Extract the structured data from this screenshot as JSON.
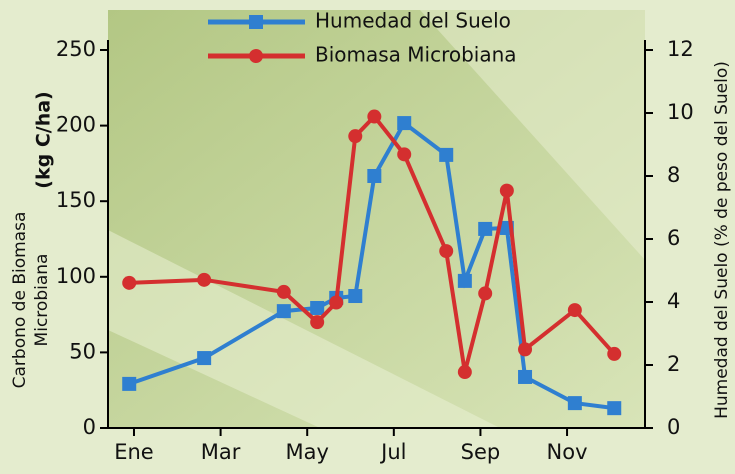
{
  "chart_data": {
    "type": "line",
    "ylabel_lines": [
      "Carbono de Biomasa",
      "Microbiana"
    ],
    "ylabel_unit": "(kg C/ha)",
    "y2label": "Humedad del Suelo (% de peso del Suelo)",
    "x": [
      0.89,
      2.62,
      4.46,
      5.23,
      5.67,
      6.11,
      6.55,
      7.24,
      8.21,
      8.64,
      9.11,
      9.61,
      10.03,
      11.18,
      12.09
    ],
    "xlim": [
      0.4,
      12.8
    ],
    "xticks": [
      {
        "value": 1,
        "label": "Ene"
      },
      {
        "value": 3,
        "label": "Mar"
      },
      {
        "value": 5,
        "label": "May"
      },
      {
        "value": 7,
        "label": "Jul"
      },
      {
        "value": 9,
        "label": "Sep"
      },
      {
        "value": 11,
        "label": "Nov"
      }
    ],
    "ylim": [
      0,
      250
    ],
    "yticks": [
      0,
      50,
      100,
      150,
      200,
      250
    ],
    "y2lim": [
      0,
      12
    ],
    "y2ticks": [
      0,
      2,
      4,
      6,
      8,
      10,
      12
    ],
    "series": [
      {
        "name": "Humedad del Suelo",
        "color": "#2f7fd0",
        "marker": "square",
        "axis": "y2",
        "values": [
          1.4,
          2.22,
          3.71,
          3.81,
          4.13,
          4.19,
          8.0,
          9.68,
          8.67,
          4.67,
          6.32,
          6.35,
          1.62,
          0.79,
          0.63
        ]
      },
      {
        "name": "Biomasa Microbiana",
        "color": "#d42f2f",
        "marker": "circle",
        "axis": "y",
        "values": [
          96,
          98,
          90,
          70,
          83,
          193,
          206,
          181,
          117,
          37,
          89,
          157,
          52,
          78,
          49
        ]
      }
    ]
  }
}
